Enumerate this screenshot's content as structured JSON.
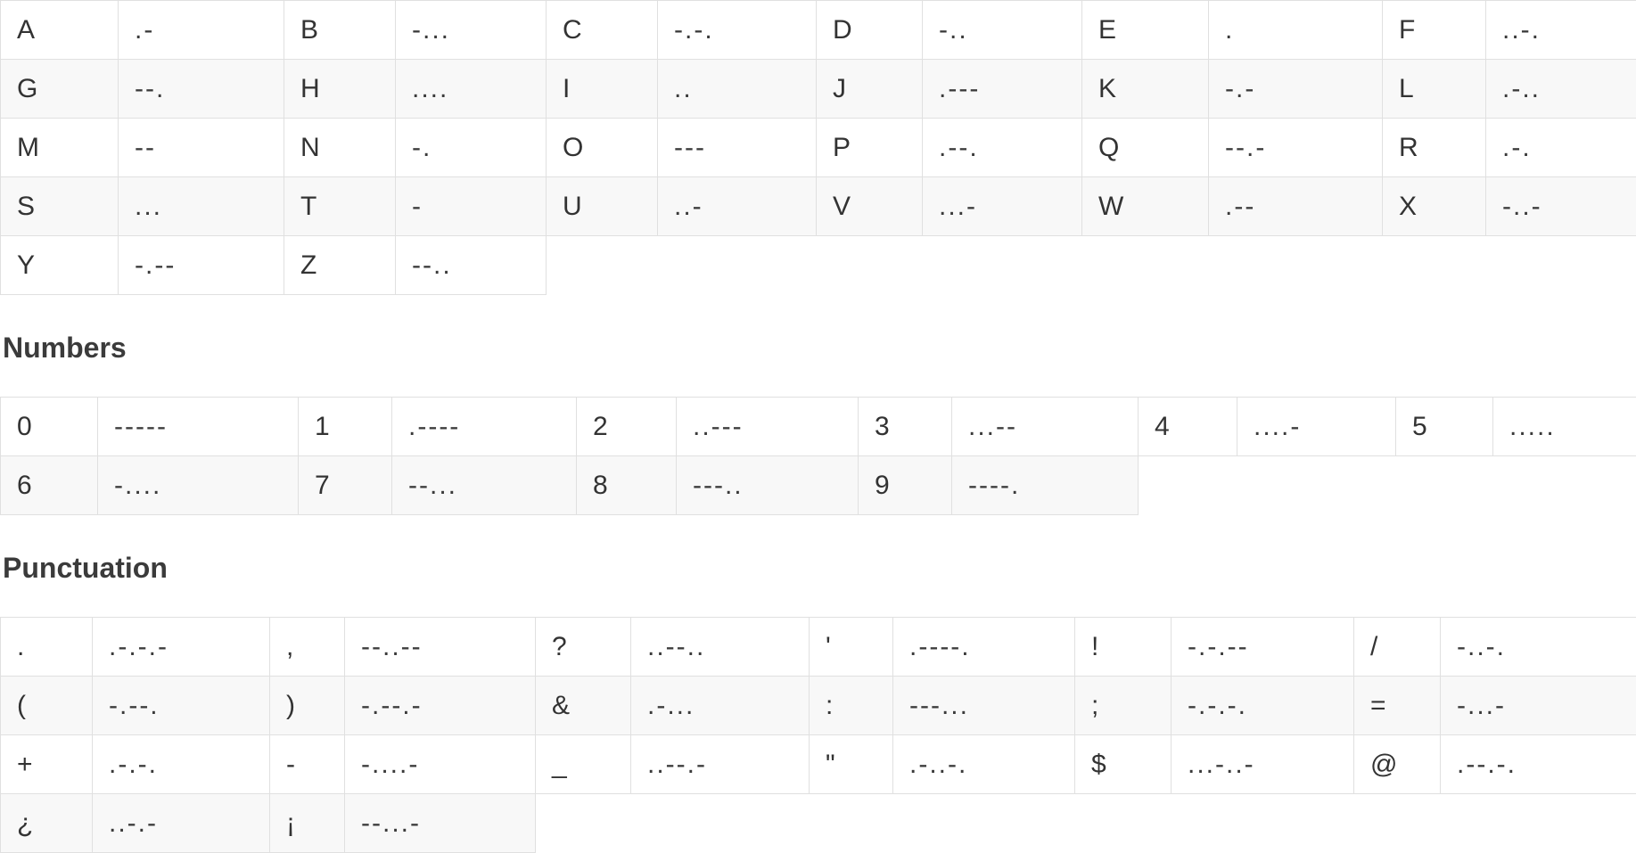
{
  "page": {
    "background_color": "#ffffff",
    "text_color": "#333333",
    "border_color": "#e0e0e0",
    "alt_row_color": "#f8f8f8"
  },
  "letters": {
    "rows": [
      [
        {
          "char": "A",
          "code": ".-"
        },
        {
          "char": "B",
          "code": "-..."
        },
        {
          "char": "C",
          "code": "-.-."
        },
        {
          "char": "D",
          "code": "-.."
        },
        {
          "char": "E",
          "code": "."
        },
        {
          "char": "F",
          "code": "..-."
        }
      ],
      [
        {
          "char": "G",
          "code": "--."
        },
        {
          "char": "H",
          "code": "...."
        },
        {
          "char": "I",
          "code": ".."
        },
        {
          "char": "J",
          "code": ".---"
        },
        {
          "char": "K",
          "code": "-.-"
        },
        {
          "char": "L",
          "code": ".-.."
        }
      ],
      [
        {
          "char": "M",
          "code": "--"
        },
        {
          "char": "N",
          "code": "-."
        },
        {
          "char": "O",
          "code": "---"
        },
        {
          "char": "P",
          "code": ".--."
        },
        {
          "char": "Q",
          "code": "--.-"
        },
        {
          "char": "R",
          "code": ".-."
        }
      ],
      [
        {
          "char": "S",
          "code": "..."
        },
        {
          "char": "T",
          "code": "-"
        },
        {
          "char": "U",
          "code": "..-"
        },
        {
          "char": "V",
          "code": "...-"
        },
        {
          "char": "W",
          "code": ".--"
        },
        {
          "char": "X",
          "code": "-..-"
        }
      ],
      [
        {
          "char": "Y",
          "code": "-.--"
        },
        {
          "char": "Z",
          "code": "--.."
        }
      ]
    ]
  },
  "numbers": {
    "title": "Numbers",
    "rows": [
      [
        {
          "char": "0",
          "code": "-----"
        },
        {
          "char": "1",
          "code": ".----"
        },
        {
          "char": "2",
          "code": "..---"
        },
        {
          "char": "3",
          "code": "...--"
        },
        {
          "char": "4",
          "code": "....-"
        },
        {
          "char": "5",
          "code": "....."
        }
      ],
      [
        {
          "char": "6",
          "code": "-...."
        },
        {
          "char": "7",
          "code": "--..."
        },
        {
          "char": "8",
          "code": "---.."
        },
        {
          "char": "9",
          "code": "----."
        }
      ]
    ]
  },
  "punctuation": {
    "title": "Punctuation",
    "rows": [
      [
        {
          "char": ".",
          "code": ".-.-.-"
        },
        {
          "char": ",",
          "code": "--..--"
        },
        {
          "char": "?",
          "code": "..--.."
        },
        {
          "char": "'",
          "code": ".----."
        },
        {
          "char": "!",
          "code": "-.-.--"
        },
        {
          "char": "/",
          "code": "-..-."
        }
      ],
      [
        {
          "char": "(",
          "code": "-.--."
        },
        {
          "char": ")",
          "code": "-.--.-"
        },
        {
          "char": "&",
          "code": ".-..."
        },
        {
          "char": ":",
          "code": "---..."
        },
        {
          "char": ";",
          "code": "-.-.-."
        },
        {
          "char": "=",
          "code": "-...-"
        }
      ],
      [
        {
          "char": "+",
          "code": ".-.-."
        },
        {
          "char": "-",
          "code": "-....-"
        },
        {
          "char": "_",
          "code": "..--.-"
        },
        {
          "char": "\"",
          "code": ".-..-."
        },
        {
          "char": "$",
          "code": "...-..-"
        },
        {
          "char": "@",
          "code": ".--.-."
        }
      ],
      [
        {
          "char": "¿",
          "code": "..-.-"
        },
        {
          "char": "¡",
          "code": "--...-"
        }
      ]
    ]
  }
}
